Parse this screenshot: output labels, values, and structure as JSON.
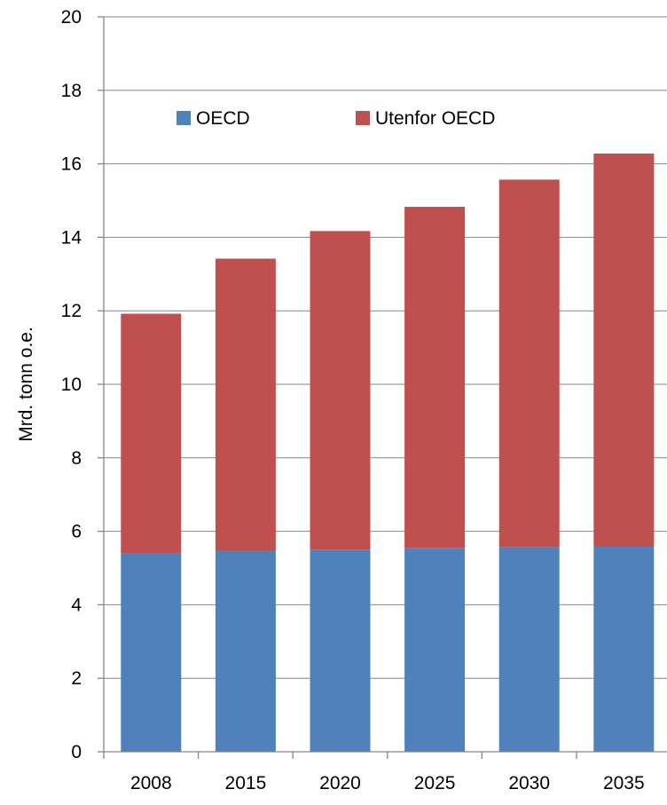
{
  "chart_data": {
    "type": "bar",
    "stacked": true,
    "categories": [
      "2008",
      "2015",
      "2020",
      "2025",
      "2030",
      "2035"
    ],
    "series": [
      {
        "name": "OECD",
        "color": "#4F81BD",
        "values": [
          5.4,
          5.47,
          5.5,
          5.55,
          5.57,
          5.58
        ]
      },
      {
        "name": "Utenfor OECD",
        "color": "#C0504D",
        "values": [
          6.52,
          7.95,
          8.67,
          9.28,
          10.0,
          10.7
        ]
      }
    ],
    "xlabel": "",
    "ylabel": "Mrd. tonn o.e.",
    "ylim": [
      0,
      20
    ],
    "yticks": [
      "0",
      "2",
      "4",
      "6",
      "8",
      "10",
      "12",
      "14",
      "16",
      "18",
      "20"
    ],
    "grid": true,
    "legend_position": "top-left"
  }
}
